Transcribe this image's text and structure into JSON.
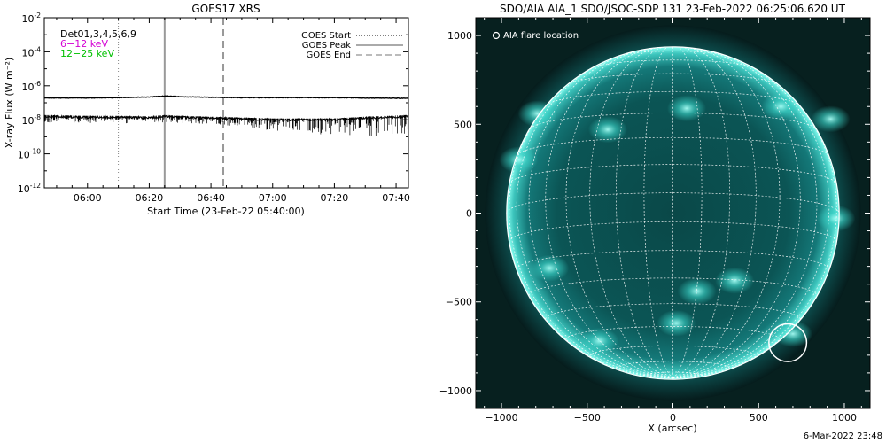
{
  "colors": {
    "background": "#ffffff",
    "axis": "#000000",
    "goes_line": "#000000",
    "band_6_12": "#d400d4",
    "band_12_25": "#00c000",
    "aia_disk": "#0a5a5a",
    "aia_limb": "#7ffff0",
    "aia_grid": "#ffffff",
    "aia_frame": "#000000"
  },
  "chart_data": [
    {
      "type": "line",
      "title": "GOES17 XRS",
      "xlabel": "Start Time (23-Feb-22 05:40:00)",
      "ylabel": "X-ray Flux (W m⁻²)",
      "yscale": "log",
      "ylim_exp": [
        -12,
        -2
      ],
      "xlim": [
        "05:46",
        "07:44"
      ],
      "x_ticks": [
        "06:00",
        "06:20",
        "06:40",
        "07:00",
        "07:20",
        "07:40"
      ],
      "y_ticks": [
        {
          "exp": -2,
          "label_base": "10",
          "label_exp": "-2"
        },
        {
          "exp": -4,
          "label_base": "10",
          "label_exp": "-4"
        },
        {
          "exp": -6,
          "label_base": "10",
          "label_exp": "-6"
        },
        {
          "exp": -8,
          "label_base": "10",
          "label_exp": "-8"
        },
        {
          "exp": -10,
          "label_base": "10",
          "label_exp": "-10"
        },
        {
          "exp": -12,
          "label_base": "10",
          "label_exp": "-12"
        }
      ],
      "band_labels": [
        {
          "text": "Det01,3,4,5,6,9",
          "color": "#000000"
        },
        {
          "text": "6−12 keV",
          "color": "#d400d4"
        },
        {
          "text": "12−25 keV",
          "color": "#00c000"
        }
      ],
      "legend": {
        "placement": "top-right",
        "entries": [
          {
            "label": "GOES Start",
            "style": "dotted"
          },
          {
            "label": "GOES Peak",
            "style": "solid"
          },
          {
            "label": "GOES End",
            "style": "dashed"
          }
        ]
      },
      "events": [
        {
          "name": "GOES Start",
          "time": "06:10",
          "style": "dotted"
        },
        {
          "name": "GOES Peak",
          "time": "06:25",
          "style": "solid"
        },
        {
          "name": "GOES End",
          "time": "06:44",
          "style": "dashed"
        }
      ],
      "series": [
        {
          "band": "long",
          "x": [
            "05:46",
            "06:00",
            "06:10",
            "06:20",
            "06:25",
            "06:30",
            "06:40",
            "06:50",
            "07:00",
            "07:10",
            "07:20",
            "07:30",
            "07:44"
          ],
          "y_exp": [
            -6.72,
            -6.72,
            -6.7,
            -6.66,
            -6.6,
            -6.64,
            -6.68,
            -6.7,
            -6.7,
            -6.7,
            -6.7,
            -6.72,
            -6.74
          ]
        },
        {
          "band": "short",
          "x": [
            "05:46",
            "06:00",
            "06:10",
            "06:20",
            "06:25",
            "06:30",
            "06:40",
            "06:50",
            "07:00",
            "07:10",
            "07:20",
            "07:30",
            "07:44"
          ],
          "y_exp": [
            -7.8,
            -7.85,
            -7.85,
            -7.88,
            -7.8,
            -7.85,
            -7.9,
            -7.95,
            -8.0,
            -8.0,
            -8.0,
            -7.9,
            -7.8
          ]
        }
      ]
    },
    {
      "type": "image",
      "title": "SDO/AIA AIA_1 SDO/JSOC-SDP 131 23-Feb-2022 06:25:06.620 UT",
      "xlabel": "X (arcsec)",
      "xlim": [
        -1150,
        1150
      ],
      "ylim": [
        -1100,
        1100
      ],
      "x_ticks": [
        -1000,
        -500,
        0,
        500,
        1000
      ],
      "y_ticks": [
        1000,
        500,
        0,
        -500,
        -1000
      ],
      "x_tick_labels": [
        "−1000",
        "−500",
        "0",
        "500",
        "1000"
      ],
      "y_tick_labels": [
        "1000",
        "500",
        "0",
        "−500",
        "−1000"
      ],
      "solar_radius_arcsec": 970,
      "grid_step_deg": 10,
      "b0_deg": -7,
      "legend_label": "AIA flare location",
      "flare": {
        "x": 670,
        "y": -730,
        "r": 110
      },
      "active_regions": [
        {
          "x": -790,
          "y": 560
        },
        {
          "x": 630,
          "y": 600
        },
        {
          "x": 920,
          "y": 530
        },
        {
          "x": 80,
          "y": 590
        },
        {
          "x": -380,
          "y": 470
        },
        {
          "x": -900,
          "y": 300
        },
        {
          "x": -720,
          "y": -310
        },
        {
          "x": -430,
          "y": -720
        },
        {
          "x": 140,
          "y": -440
        },
        {
          "x": 360,
          "y": -380
        },
        {
          "x": 700,
          "y": -680
        },
        {
          "x": 950,
          "y": -30
        },
        {
          "x": 20,
          "y": -620
        }
      ]
    }
  ],
  "footer": {
    "timestamp": "6-Mar-2022 23:48"
  }
}
